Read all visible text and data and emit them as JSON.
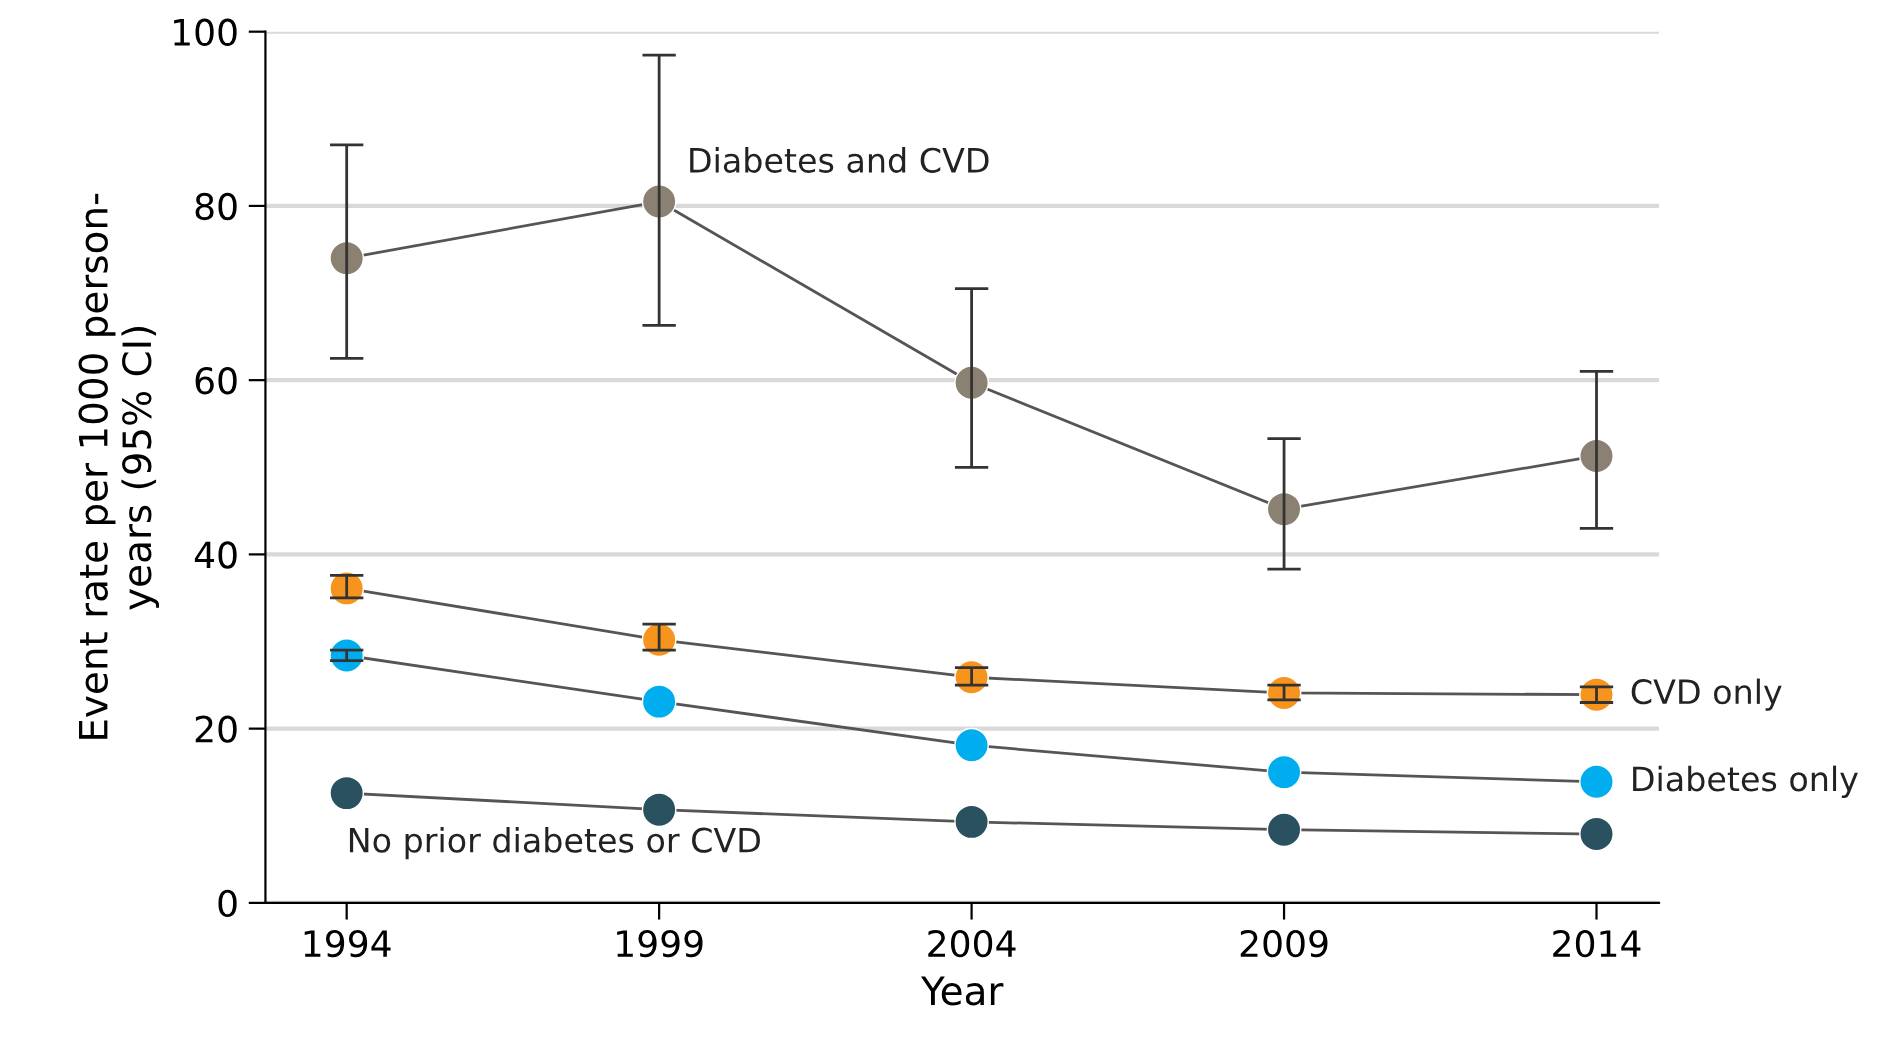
{
  "chart_data": {
    "type": "line",
    "xlabel": "Year",
    "ylabel": "Event rate per 1000 person-\nyears (95% CI)",
    "x": [
      1994,
      1999,
      2004,
      2009,
      2014
    ],
    "series": [
      {
        "color": "#8b8172",
        "values": [
          74.0,
          80.5,
          59.7,
          45.2,
          51.3
        ],
        "errors": [
          [
            62.5,
            87.0
          ],
          [
            66.3,
            97.3
          ],
          [
            50.0,
            70.5
          ],
          [
            38.3,
            53.3
          ],
          [
            43.0,
            61.0
          ]
        ]
      },
      {
        "color": "#f7941d",
        "values": [
          36.1,
          30.2,
          25.9,
          24.1,
          23.9
        ],
        "errors": [
          [
            35.0,
            37.6
          ],
          [
            29.0,
            32.0
          ],
          [
            25.0,
            27.0
          ],
          [
            23.3,
            25.0
          ],
          [
            23.0,
            24.8
          ]
        ]
      },
      {
        "color": "#00aeef",
        "values": [
          28.4,
          23.1,
          18.1,
          15.0,
          13.9
        ],
        "errors": [
          [
            27.8,
            29.0
          ],
          null,
          null,
          null,
          null
        ]
      },
      {
        "color": "#2a5160",
        "values": [
          12.6,
          10.7,
          9.3,
          8.4,
          7.9
        ]
      }
    ],
    "annotations": [
      {
        "text": "Diabetes and CVD",
        "x": 1999,
        "y": 80.5
      },
      {
        "text": "CVD only",
        "x": 2014,
        "y": 23.9
      },
      {
        "text": "Diabetes only",
        "x": 2014,
        "y": 13.9
      },
      {
        "text": "No prior diabetes or CVD",
        "x": 1994,
        "y": 12.6
      }
    ],
    "xlim": [
      1992.7,
      2015
    ],
    "xticks": [
      1994,
      1999,
      2004,
      2009,
      2014
    ],
    "ylim": [
      0,
      100
    ],
    "yticks": [
      0,
      20,
      40,
      60,
      80,
      100
    ],
    "grid": "y",
    "marker": "circle",
    "line_style": "solid"
  }
}
